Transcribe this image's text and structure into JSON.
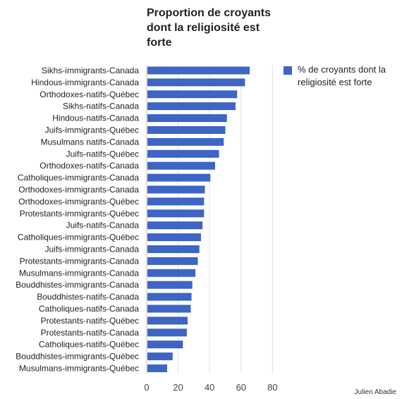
{
  "chart_data": {
    "type": "bar",
    "orientation": "horizontal",
    "title": "Proportion de croyants dont la religiosité est forte",
    "categories": [
      "Sikhs-immigrants-Canada",
      "Hindous-immigrants-Canada",
      "Orthodoxes-natifs-Québec",
      "Sikhs-natifs-Canada",
      "Hindous-natifs-Canada",
      "Juifs-immigrants-Québec",
      "Musulmans natifs-Canada",
      "Juifs-natifs-Québec",
      "Orthodoxes-natifs-Canada",
      "Catholiques-immigrants-Canada",
      "Orthodoxes-immigrants-Canada",
      "Orthodoxes-immigrants-Québec",
      "Protestants-immigrants-Québec",
      "Juifs-natifs-Canada",
      "Catholiques-immigrants-Québec",
      "Juifs-immigrants-Canada",
      "Protestants-immigrants-Canada",
      "Musulmans-immigrants-Canada",
      "Bouddhistes-immigrants-Canada",
      "Bouddhistes-natifs-Canada",
      "Catholiques-natifs-Canada",
      "Protestants-natifs-Québec",
      "Protestants-natifs-Canada",
      "Catholiques-natifs-Québec",
      "Bouddhistes-immigrants-Québec",
      "Musulmans-immigrants-Québec"
    ],
    "series": [
      {
        "name": "% de croyants dont la religiosité est forte",
        "color": "#3d65c6",
        "values": [
          65.5,
          62.5,
          57.5,
          56.5,
          51,
          50,
          49,
          46,
          43.5,
          40.5,
          37,
          36.5,
          36.5,
          35.5,
          34.5,
          33.5,
          32.5,
          31,
          29,
          28.5,
          28,
          26,
          25.5,
          23,
          16.5,
          13
        ]
      }
    ],
    "xlim": [
      0,
      80
    ],
    "xticks": [
      0,
      20,
      40,
      60,
      80
    ],
    "grid": true,
    "legend_position": "right",
    "credit": "Julien Abadie"
  }
}
